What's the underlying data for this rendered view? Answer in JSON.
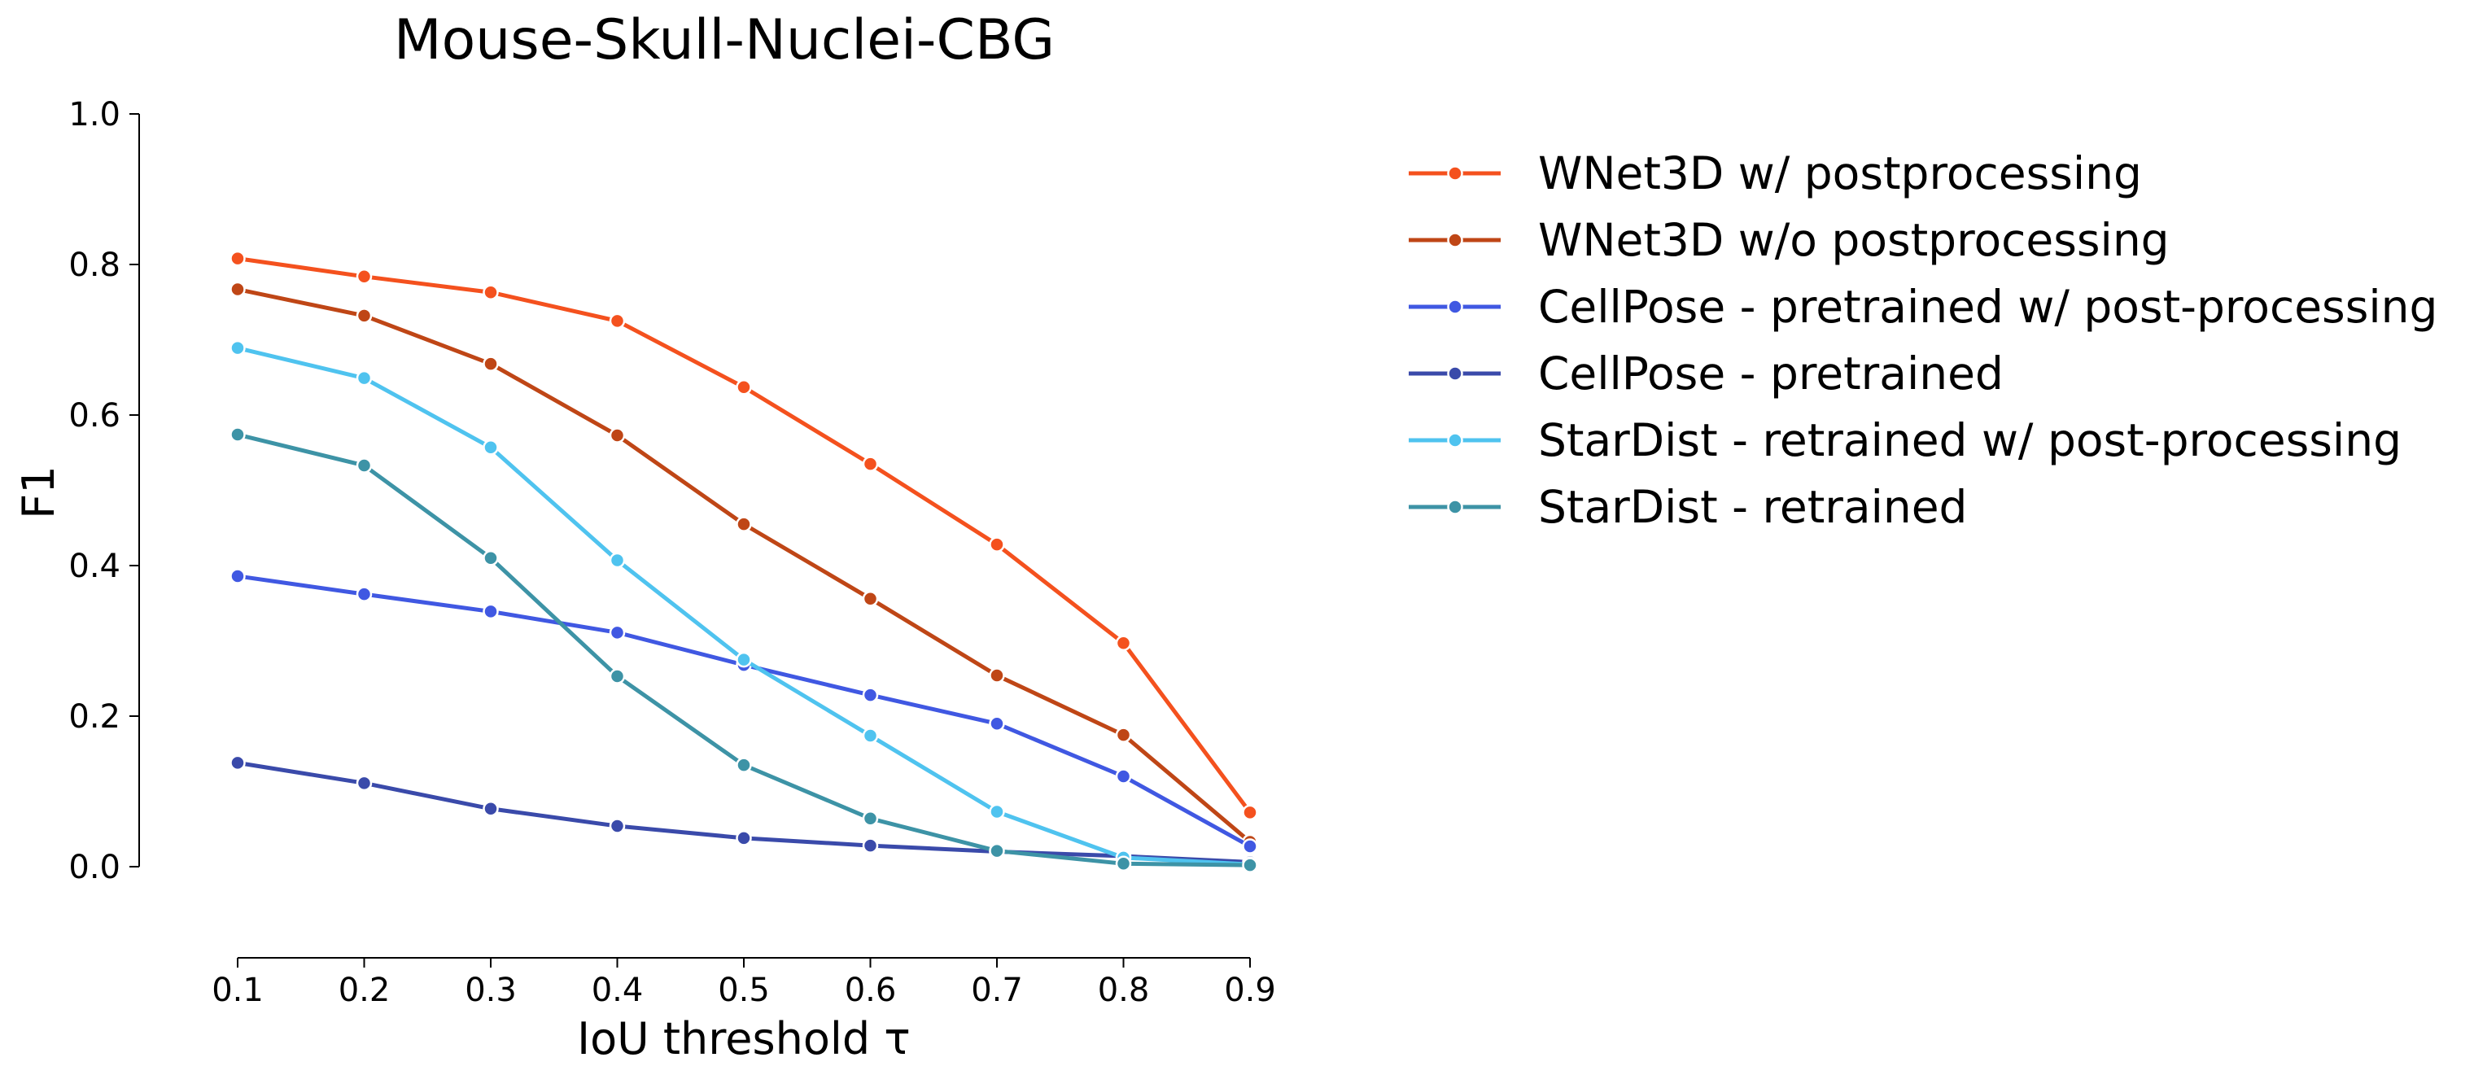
{
  "chart_data": {
    "type": "line",
    "title": "Mouse-Skull-Nuclei-CBG",
    "xlabel": "IoU threshold τ",
    "ylabel": "F1",
    "x": [
      0.1,
      0.2,
      0.3,
      0.4,
      0.5,
      0.6,
      0.7,
      0.8,
      0.9
    ],
    "x_tick_labels": [
      "0.1",
      "0.2",
      "0.3",
      "0.4",
      "0.5",
      "0.6",
      "0.7",
      "0.8",
      "0.9"
    ],
    "y_tick_values": [
      0.0,
      0.2,
      0.4,
      0.6,
      0.8,
      1.0
    ],
    "y_tick_labels": [
      "0.0",
      "0.2",
      "0.4",
      "0.6",
      "0.8",
      "1.0"
    ],
    "xlim": [
      0.1,
      0.9
    ],
    "ylim": [
      -0.12,
      1.0
    ],
    "grid": false,
    "legend_position": "right, outside plot",
    "series": [
      {
        "name": "WNet3D w/ postprocessing",
        "color": "#f4511e",
        "values": [
          0.808,
          0.784,
          0.763,
          0.725,
          0.637,
          0.535,
          0.428,
          0.297,
          0.072
        ]
      },
      {
        "name": "WNet3D w/o postprocessing",
        "color": "#bf4616",
        "values": [
          0.767,
          0.732,
          0.668,
          0.573,
          0.455,
          0.356,
          0.254,
          0.175,
          0.033
        ]
      },
      {
        "name": "CellPose - pretrained w/ post-processing",
        "color": "#4058e2",
        "values": [
          0.386,
          0.362,
          0.339,
          0.311,
          0.268,
          0.228,
          0.19,
          0.12,
          0.027
        ]
      },
      {
        "name": "CellPose - pretrained",
        "color": "#3a4aaa",
        "values": [
          0.138,
          0.111,
          0.077,
          0.054,
          0.038,
          0.028,
          0.02,
          0.014,
          0.006
        ]
      },
      {
        "name": "StarDist - retrained w/ post-processing",
        "color": "#4fc3ef",
        "values": [
          0.689,
          0.649,
          0.557,
          0.407,
          0.275,
          0.174,
          0.073,
          0.012,
          0.003
        ]
      },
      {
        "name": "StarDist - retrained",
        "color": "#3d93a6",
        "values": [
          0.574,
          0.533,
          0.41,
          0.253,
          0.135,
          0.064,
          0.021,
          0.004,
          0.002
        ]
      }
    ]
  }
}
